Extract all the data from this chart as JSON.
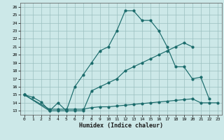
{
  "xlabel": "Humidex (Indice chaleur)",
  "bg_color": "#cce8e8",
  "grid_color": "#9bbfbf",
  "line_color": "#1a6b6b",
  "xlim": [
    -0.5,
    23.5
  ],
  "ylim": [
    12.5,
    26.5
  ],
  "xticks": [
    0,
    1,
    2,
    3,
    4,
    5,
    6,
    7,
    8,
    9,
    10,
    11,
    12,
    13,
    14,
    15,
    16,
    17,
    18,
    19,
    20,
    21,
    22,
    23
  ],
  "yticks": [
    13,
    14,
    15,
    16,
    17,
    18,
    19,
    20,
    21,
    22,
    23,
    24,
    25,
    26
  ],
  "series1_x": [
    0,
    1,
    2,
    3,
    4,
    5,
    6,
    7,
    8,
    9,
    10,
    11,
    12,
    13,
    14,
    15,
    16,
    17,
    18,
    19,
    20,
    21,
    22
  ],
  "series1_y": [
    15,
    14.7,
    14.1,
    13.0,
    14.0,
    13.0,
    16.0,
    17.5,
    19.0,
    20.5,
    21.0,
    23.0,
    25.5,
    25.5,
    24.3,
    24.3,
    23.0,
    21.0,
    18.5,
    18.5,
    17.0,
    17.2,
    14.5
  ],
  "series2_x": [
    0,
    3,
    4,
    5,
    6,
    7,
    8,
    9,
    10,
    11,
    12,
    13,
    14,
    15,
    16,
    17,
    18,
    19,
    20
  ],
  "series2_y": [
    15,
    13.0,
    13.0,
    13.0,
    13.0,
    13.0,
    15.5,
    16.0,
    16.5,
    17.0,
    18.0,
    18.5,
    19.0,
    19.5,
    20.0,
    20.5,
    21.0,
    21.5,
    21.0
  ],
  "series3_x": [
    0,
    3,
    4,
    5,
    6,
    7,
    8,
    9,
    10,
    11,
    12,
    13,
    14,
    15,
    16,
    17,
    18,
    19,
    20,
    21,
    22,
    23
  ],
  "series3_y": [
    15,
    13.2,
    13.2,
    13.2,
    13.2,
    13.2,
    13.4,
    13.5,
    13.5,
    13.6,
    13.7,
    13.8,
    13.9,
    14.0,
    14.1,
    14.2,
    14.3,
    14.4,
    14.5,
    14.0,
    14.0,
    14.0
  ]
}
